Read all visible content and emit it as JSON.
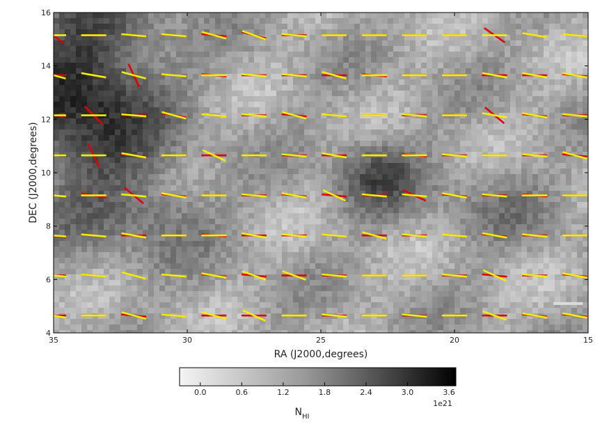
{
  "chart_data": {
    "type": "heatmap",
    "title": "",
    "xlabel": "RA (J2000,degrees)",
    "ylabel": "DEC (J2000,degrees)",
    "xlim": [
      35,
      15
    ],
    "ylim": [
      4,
      16
    ],
    "xticks": [
      "35",
      "30",
      "25",
      "20",
      "15"
    ],
    "yticks": [
      "4",
      "6",
      "8",
      "10",
      "12",
      "14",
      "16"
    ],
    "grid": false,
    "background": "grayscale N_HI column density map",
    "colorbar": {
      "label_main": "N",
      "label_sub": "HI",
      "multiplier": "1e21",
      "min": -0.3,
      "max": 3.7,
      "ticks": [
        "0.0",
        "0.6",
        "1.2",
        "1.8",
        "2.4",
        "3.0",
        "3.6"
      ]
    },
    "vector_grid": {
      "ra": [
        35,
        33.5,
        32,
        30.5,
        29,
        27.5,
        26,
        24.5,
        23,
        21.5,
        20,
        18.5,
        17,
        15.5
      ],
      "dec": [
        15.15,
        13.65,
        12.15,
        10.65,
        9.15,
        7.65,
        6.15,
        4.65
      ],
      "series": [
        {
          "color": "#e00000",
          "angles_deg": [
            [
              -40,
              0,
              -5,
              -5,
              -5,
              -15,
              0,
              0,
              0,
              0,
              0,
              -35,
              -10,
              -5
            ],
            [
              0,
              -10,
              -65,
              -5,
              -5,
              0,
              0,
              0,
              -5,
              0,
              0,
              0,
              0,
              -5
            ],
            [
              -5,
              -45,
              0,
              -10,
              -5,
              0,
              -5,
              -5,
              0,
              0,
              0,
              -40,
              -5,
              0
            ],
            [
              0,
              -65,
              -5,
              0,
              0,
              0,
              0,
              0,
              0,
              -5,
              0,
              0,
              0,
              -5
            ],
            [
              -5,
              -10,
              -40,
              -5,
              0,
              0,
              -5,
              -5,
              0,
              -25,
              -5,
              0,
              -5,
              0
            ],
            [
              -10,
              -5,
              0,
              0,
              -5,
              0,
              0,
              -5,
              0,
              0,
              -5,
              -5,
              0,
              0
            ],
            [
              0,
              -5,
              -15,
              -5,
              -5,
              -5,
              0,
              0,
              0,
              0,
              0,
              -5,
              0,
              -5
            ],
            [
              0,
              0,
              -5,
              -5,
              0,
              0,
              0,
              0,
              0,
              0,
              0,
              0,
              -5,
              -5
            ]
          ]
        },
        {
          "color": "#f2f200",
          "angles_deg": [
            [
              0,
              0,
              -5,
              -5,
              -15,
              -20,
              -5,
              0,
              0,
              0,
              0,
              0,
              -10,
              -5
            ],
            [
              -15,
              -10,
              -15,
              -5,
              0,
              -5,
              -5,
              -15,
              0,
              0,
              0,
              -10,
              -10,
              -10
            ],
            [
              0,
              0,
              -5,
              -15,
              -5,
              -5,
              -15,
              -5,
              0,
              -5,
              0,
              -10,
              -10,
              -5
            ],
            [
              0,
              0,
              -10,
              0,
              -25,
              0,
              -5,
              -10,
              0,
              0,
              -5,
              0,
              -5,
              -15
            ],
            [
              -5,
              0,
              -5,
              -10,
              0,
              -5,
              -10,
              -25,
              -5,
              -5,
              -10,
              -5,
              0,
              0
            ],
            [
              -5,
              -5,
              -10,
              0,
              0,
              -10,
              -5,
              -5,
              -15,
              -5,
              -5,
              -10,
              -5,
              0
            ],
            [
              -5,
              -5,
              -15,
              -5,
              -10,
              -20,
              -20,
              -5,
              0,
              0,
              -5,
              -25,
              -5,
              -10
            ],
            [
              -10,
              0,
              -15,
              -5,
              -15,
              -25,
              0,
              -5,
              0,
              -5,
              0,
              -20,
              -10,
              -10
            ]
          ]
        }
      ]
    },
    "scale_bar": {
      "ra_from": 16.3,
      "ra_to": 15.2,
      "dec": 5.1,
      "color": "#dcdcdc"
    }
  }
}
